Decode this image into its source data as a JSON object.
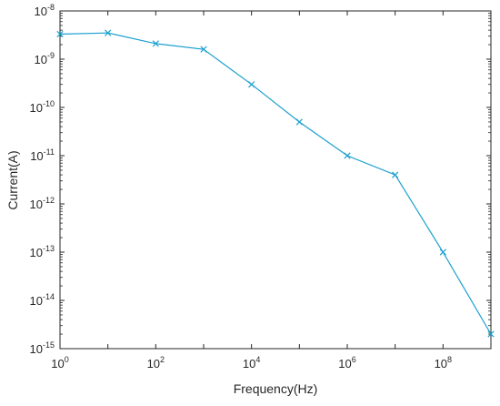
{
  "chart_data": {
    "type": "line",
    "xlabel": "Frequency(Hz)",
    "ylabel": "Current(A)",
    "x_scale": "log",
    "y_scale": "log",
    "xlim": [
      1,
      1000000000
    ],
    "ylim": [
      1e-15,
      1e-08
    ],
    "x_ticks": [
      {
        "base": "10",
        "exp": "0",
        "value": 1
      },
      {
        "base": "10",
        "exp": "2",
        "value": 100
      },
      {
        "base": "10",
        "exp": "4",
        "value": 10000
      },
      {
        "base": "10",
        "exp": "6",
        "value": 1000000
      },
      {
        "base": "10",
        "exp": "8",
        "value": 100000000
      }
    ],
    "y_ticks": [
      {
        "base": "10",
        "exp": "-8",
        "value": 1e-08
      },
      {
        "base": "10",
        "exp": "-9",
        "value": 1e-09
      },
      {
        "base": "10",
        "exp": "-10",
        "value": 1e-10
      },
      {
        "base": "10",
        "exp": "-11",
        "value": 1e-11
      },
      {
        "base": "10",
        "exp": "-12",
        "value": 1e-12
      },
      {
        "base": "10",
        "exp": "-13",
        "value": 1e-13
      },
      {
        "base": "10",
        "exp": "-14",
        "value": 1e-14
      },
      {
        "base": "10",
        "exp": "-15",
        "value": 1e-15
      }
    ],
    "grid": false,
    "marker": "x",
    "line_color": "#1a9fcf",
    "series": [
      {
        "x": [
          1,
          10,
          100,
          1000,
          10000,
          100000,
          1000000,
          10000000,
          100000000,
          1000000000
        ],
        "y": [
          3.3e-09,
          3.5e-09,
          2.1e-09,
          1.6e-09,
          3e-10,
          5e-11,
          1e-11,
          4e-12,
          1e-13,
          2e-15
        ]
      }
    ]
  }
}
